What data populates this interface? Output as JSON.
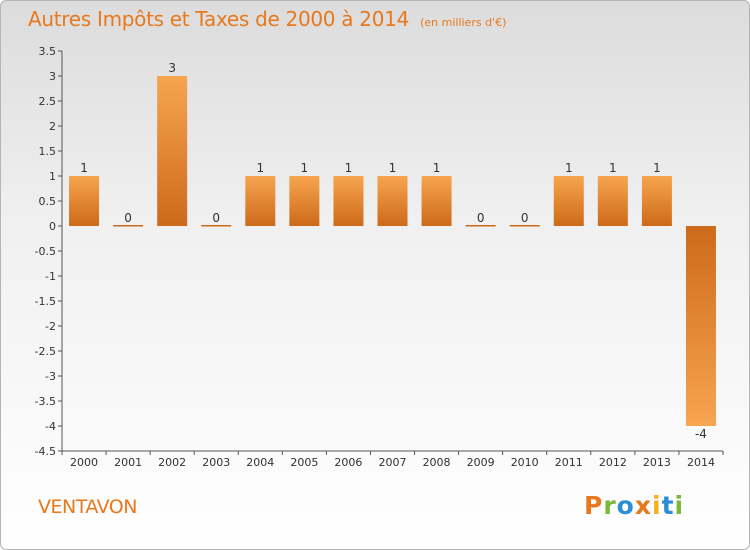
{
  "title": "Autres Impôts et Taxes de 2000 à 2014",
  "unit_note": "(en milliers d'€)",
  "place_name": "VENTAVON",
  "logo": {
    "text": "Proxiti",
    "colors": [
      "#e8781c",
      "#7bb83a",
      "#2b8fd6",
      "#e8781c",
      "#f2b21c",
      "#2b8fd6",
      "#7bb83a"
    ]
  },
  "colors": {
    "bar_light": "#f7a54f",
    "bar_dark": "#cd6a1a",
    "title": "#e8781c",
    "axis": "#333333"
  },
  "chart_data": {
    "type": "bar",
    "title": "Autres Impôts et Taxes de 2000 à 2014",
    "categories": [
      "2000",
      "2001",
      "2002",
      "2003",
      "2004",
      "2005",
      "2006",
      "2007",
      "2008",
      "2009",
      "2010",
      "2011",
      "2012",
      "2013",
      "2014"
    ],
    "values": [
      1,
      0,
      3,
      0,
      1,
      1,
      1,
      1,
      1,
      0,
      0,
      1,
      1,
      1,
      -4
    ],
    "data_labels": [
      "1",
      "0",
      "3",
      "0",
      "1",
      "1",
      "1",
      "1",
      "1",
      "0",
      "0",
      "1",
      "1",
      "1",
      "-4"
    ],
    "ylim": [
      -4.5,
      3.5
    ],
    "yticks": [
      3.5,
      3,
      2.5,
      2,
      1.5,
      1,
      0.5,
      0,
      -0.5,
      -1,
      -1.5,
      -2,
      -2.5,
      -3,
      -3.5,
      -4,
      -4.5
    ],
    "ytick_labels": [
      "3.5",
      "3",
      "2.5",
      "2",
      "1.5",
      "1",
      "0.5",
      "0",
      "-0.5",
      "-1",
      "-1.5",
      "-2",
      "-2.5",
      "-3",
      "-3.5",
      "-4",
      "-4.5"
    ],
    "grid": false,
    "legend": "none"
  }
}
